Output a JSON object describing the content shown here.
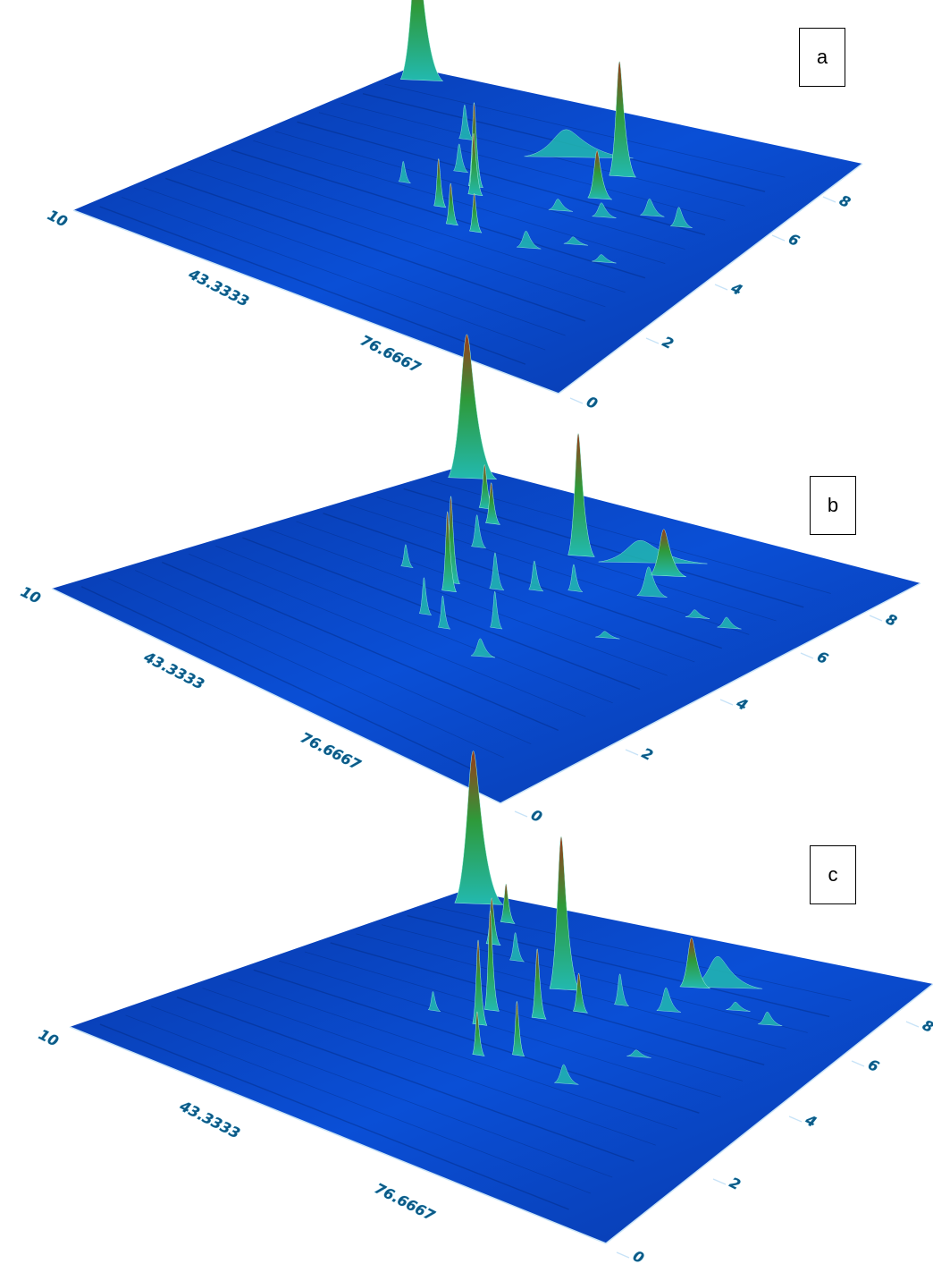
{
  "colors": {
    "floor": "#0a4fd6",
    "floor_dark": "#0838a8",
    "axis": "#c7e3f7",
    "peak_low": "#22b9b0",
    "peak_mid": "#2e9a3a",
    "peak_high": "#9a3a1a"
  },
  "chart_data": [
    {
      "type": "surface3d",
      "panel_label": "a",
      "x_ticks": [
        "10",
        "43.3333",
        "76.6667"
      ],
      "y_ticks": [
        "0",
        "2",
        "4",
        "6",
        "8"
      ],
      "peaks": [
        {
          "x": 0.05,
          "y": 0.95,
          "h": 1.0,
          "w": 0.035
        },
        {
          "x": 0.63,
          "y": 0.76,
          "h": 0.85,
          "w": 0.022
        },
        {
          "x": 0.5,
          "y": 0.78,
          "h": 0.2,
          "w": 0.09
        },
        {
          "x": 0.65,
          "y": 0.66,
          "h": 0.35,
          "w": 0.02
        },
        {
          "x": 0.3,
          "y": 0.75,
          "h": 0.25,
          "w": 0.012
        },
        {
          "x": 0.44,
          "y": 0.58,
          "h": 0.62,
          "w": 0.012
        },
        {
          "x": 0.46,
          "y": 0.55,
          "h": 0.45,
          "w": 0.012
        },
        {
          "x": 0.38,
          "y": 0.62,
          "h": 0.2,
          "w": 0.012
        },
        {
          "x": 0.33,
          "y": 0.52,
          "h": 0.15,
          "w": 0.01
        },
        {
          "x": 0.5,
          "y": 0.42,
          "h": 0.3,
          "w": 0.01
        },
        {
          "x": 0.55,
          "y": 0.42,
          "h": 0.28,
          "w": 0.01
        },
        {
          "x": 0.44,
          "y": 0.47,
          "h": 0.35,
          "w": 0.01
        },
        {
          "x": 0.66,
          "y": 0.42,
          "h": 0.12,
          "w": 0.02
        },
        {
          "x": 0.7,
          "y": 0.6,
          "h": 0.1,
          "w": 0.02
        },
        {
          "x": 0.77,
          "y": 0.65,
          "h": 0.12,
          "w": 0.02
        },
        {
          "x": 0.84,
          "y": 0.64,
          "h": 0.14,
          "w": 0.018
        },
        {
          "x": 0.62,
          "y": 0.58,
          "h": 0.08,
          "w": 0.02
        },
        {
          "x": 0.72,
          "y": 0.48,
          "h": 0.05,
          "w": 0.02
        },
        {
          "x": 0.8,
          "y": 0.45,
          "h": 0.05,
          "w": 0.02
        }
      ]
    },
    {
      "type": "surface3d",
      "panel_label": "b",
      "x_ticks": [
        "10",
        "43.3333",
        "76.6667"
      ],
      "y_ticks": [
        "0",
        "2",
        "4",
        "6",
        "8"
      ],
      "peaks": [
        {
          "x": 0.05,
          "y": 0.95,
          "h": 1.0,
          "w": 0.04
        },
        {
          "x": 0.45,
          "y": 0.78,
          "h": 0.85,
          "w": 0.022
        },
        {
          "x": 0.62,
          "y": 0.8,
          "h": 0.32,
          "w": 0.03
        },
        {
          "x": 0.55,
          "y": 0.82,
          "h": 0.15,
          "w": 0.09
        },
        {
          "x": 0.66,
          "y": 0.72,
          "h": 0.2,
          "w": 0.025
        },
        {
          "x": 0.18,
          "y": 0.85,
          "h": 0.3,
          "w": 0.012
        },
        {
          "x": 0.24,
          "y": 0.8,
          "h": 0.28,
          "w": 0.012
        },
        {
          "x": 0.3,
          "y": 0.7,
          "h": 0.22,
          "w": 0.012
        },
        {
          "x": 0.38,
          "y": 0.55,
          "h": 0.6,
          "w": 0.012
        },
        {
          "x": 0.4,
          "y": 0.52,
          "h": 0.55,
          "w": 0.012
        },
        {
          "x": 0.45,
          "y": 0.58,
          "h": 0.25,
          "w": 0.012
        },
        {
          "x": 0.5,
          "y": 0.62,
          "h": 0.2,
          "w": 0.012
        },
        {
          "x": 0.55,
          "y": 0.66,
          "h": 0.18,
          "w": 0.012
        },
        {
          "x": 0.28,
          "y": 0.55,
          "h": 0.15,
          "w": 0.01
        },
        {
          "x": 0.44,
          "y": 0.42,
          "h": 0.25,
          "w": 0.01
        },
        {
          "x": 0.5,
          "y": 0.4,
          "h": 0.22,
          "w": 0.01
        },
        {
          "x": 0.56,
          "y": 0.46,
          "h": 0.25,
          "w": 0.01
        },
        {
          "x": 0.62,
          "y": 0.36,
          "h": 0.12,
          "w": 0.02
        },
        {
          "x": 0.78,
          "y": 0.7,
          "h": 0.05,
          "w": 0.02
        },
        {
          "x": 0.85,
          "y": 0.7,
          "h": 0.07,
          "w": 0.02
        },
        {
          "x": 0.72,
          "y": 0.55,
          "h": 0.04,
          "w": 0.02
        }
      ]
    },
    {
      "type": "surface3d",
      "panel_label": "c",
      "x_ticks": [
        "10",
        "43.3333",
        "76.6667"
      ],
      "y_ticks": [
        "0",
        "2",
        "4",
        "6",
        "8"
      ],
      "peaks": [
        {
          "x": 0.06,
          "y": 0.95,
          "h": 1.0,
          "w": 0.04
        },
        {
          "x": 0.44,
          "y": 0.7,
          "h": 1.0,
          "w": 0.025
        },
        {
          "x": 0.62,
          "y": 0.82,
          "h": 0.32,
          "w": 0.025
        },
        {
          "x": 0.66,
          "y": 0.84,
          "h": 0.2,
          "w": 0.06
        },
        {
          "x": 0.64,
          "y": 0.72,
          "h": 0.15,
          "w": 0.02
        },
        {
          "x": 0.17,
          "y": 0.9,
          "h": 0.25,
          "w": 0.012
        },
        {
          "x": 0.22,
          "y": 0.8,
          "h": 0.3,
          "w": 0.012
        },
        {
          "x": 0.3,
          "y": 0.76,
          "h": 0.18,
          "w": 0.012
        },
        {
          "x": 0.4,
          "y": 0.56,
          "h": 0.65,
          "w": 0.012
        },
        {
          "x": 0.42,
          "y": 0.5,
          "h": 0.55,
          "w": 0.012
        },
        {
          "x": 0.48,
          "y": 0.58,
          "h": 0.45,
          "w": 0.012
        },
        {
          "x": 0.52,
          "y": 0.64,
          "h": 0.25,
          "w": 0.012
        },
        {
          "x": 0.56,
          "y": 0.7,
          "h": 0.2,
          "w": 0.012
        },
        {
          "x": 0.33,
          "y": 0.5,
          "h": 0.12,
          "w": 0.01
        },
        {
          "x": 0.49,
          "y": 0.4,
          "h": 0.28,
          "w": 0.01
        },
        {
          "x": 0.54,
          "y": 0.44,
          "h": 0.35,
          "w": 0.01
        },
        {
          "x": 0.66,
          "y": 0.4,
          "h": 0.12,
          "w": 0.02
        },
        {
          "x": 0.74,
          "y": 0.78,
          "h": 0.05,
          "w": 0.02
        },
        {
          "x": 0.82,
          "y": 0.76,
          "h": 0.08,
          "w": 0.02
        },
        {
          "x": 0.7,
          "y": 0.55,
          "h": 0.04,
          "w": 0.02
        }
      ]
    }
  ]
}
